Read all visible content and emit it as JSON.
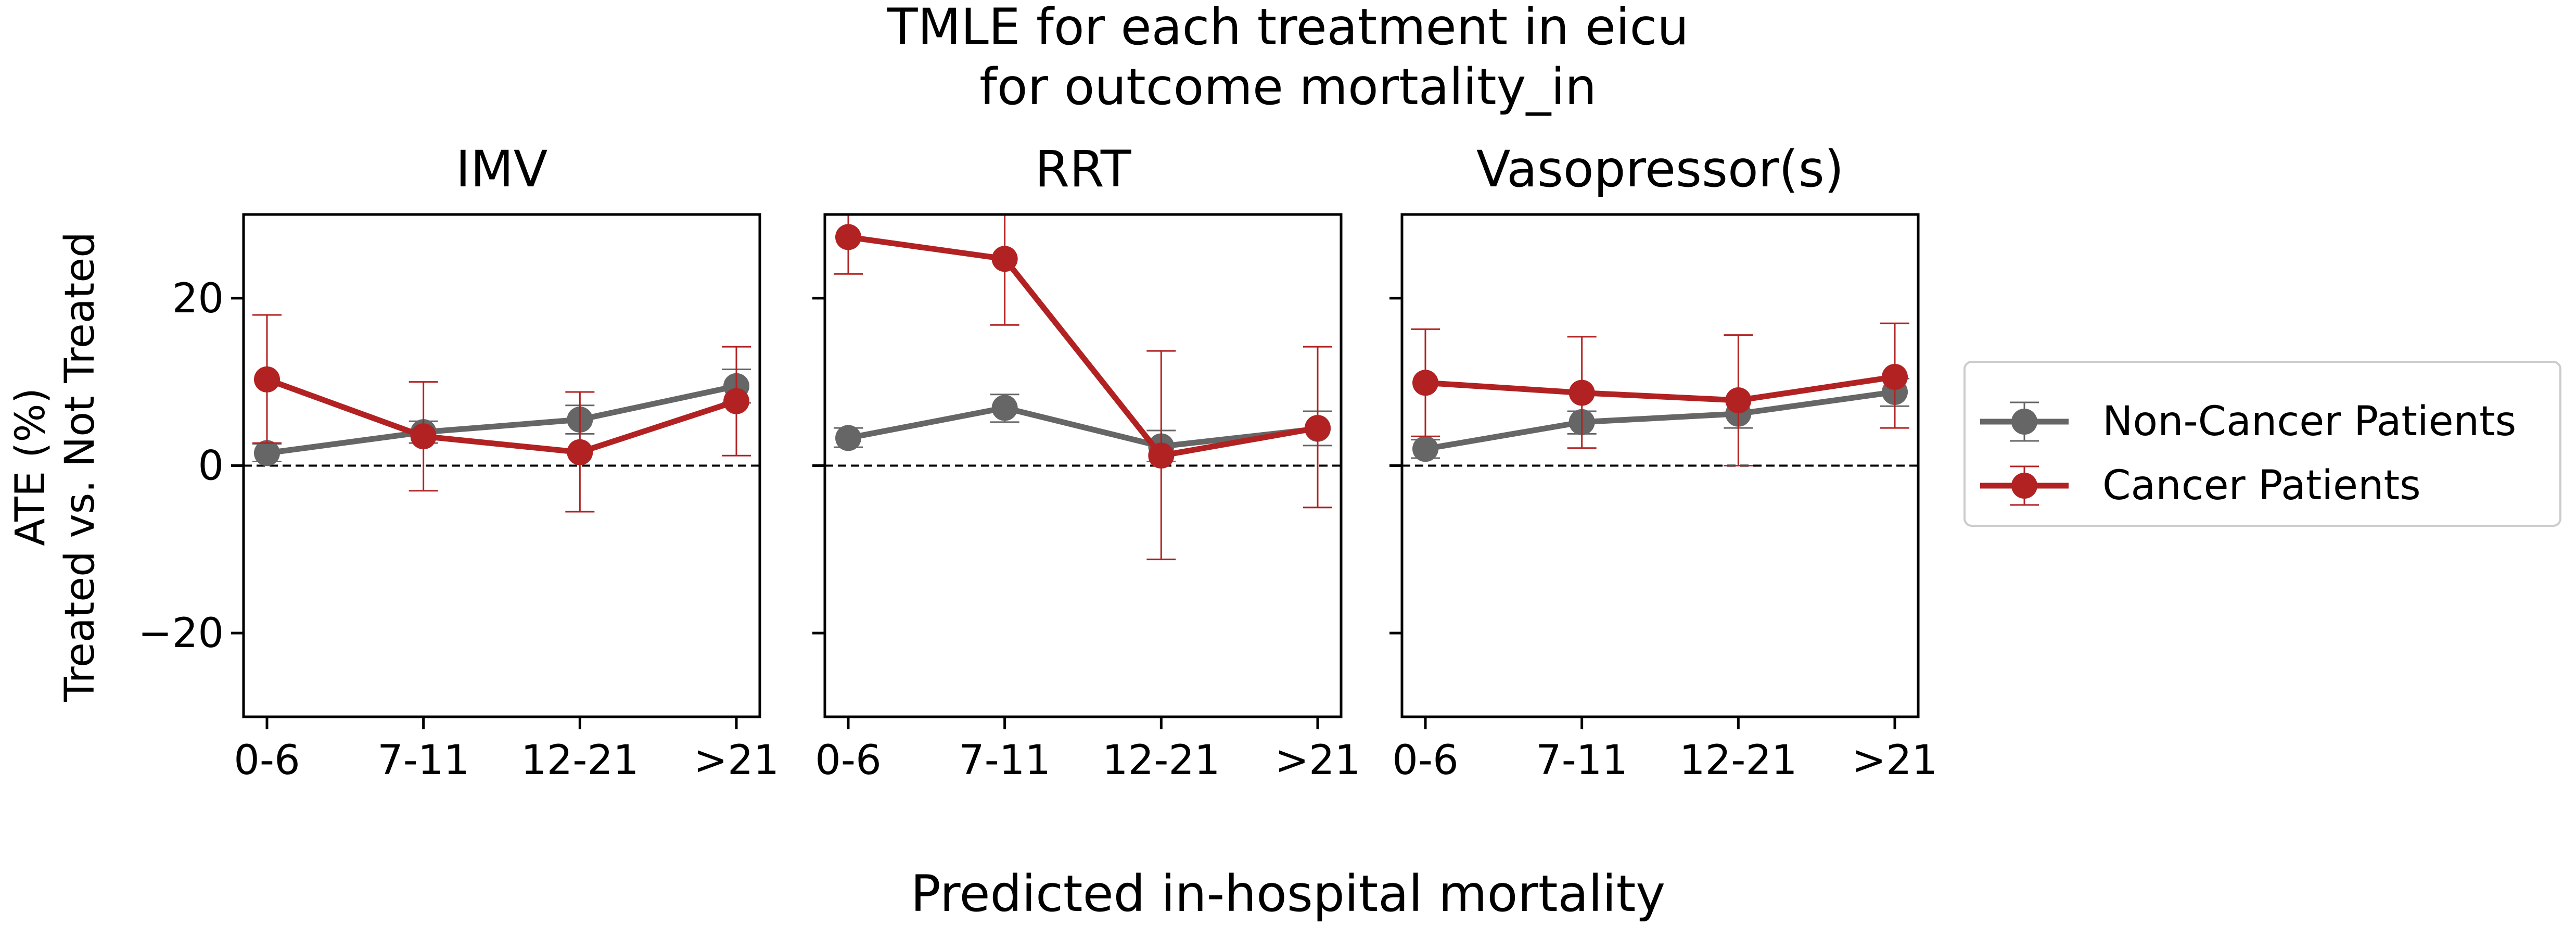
{
  "figure": {
    "title_line1": "TMLE for each treatment in eicu",
    "title_line2": "for outcome mortality_in",
    "xlabel": "Predicted in-hospital mortality",
    "ylabel_line1": "ATE (%)",
    "ylabel_line2": "Treated vs. Not Treated"
  },
  "legend": {
    "position": "right",
    "entries": [
      {
        "label": "Non-Cancer Patients",
        "color": "#666666"
      },
      {
        "label": "Cancer Patients",
        "color": "#b22222"
      }
    ]
  },
  "chart_data": [
    {
      "type": "line",
      "title": "IMV",
      "categories": [
        "0-6",
        "7-11",
        "12-21",
        ">21"
      ],
      "ylim": [
        -30,
        30
      ],
      "yticks": [
        -20,
        0,
        20
      ],
      "ytick_labels": [
        "−20",
        "0",
        "20"
      ],
      "reference_line": 0,
      "grid": false,
      "series": [
        {
          "name": "Non-Cancer Patients",
          "color": "#666666",
          "values": [
            1.5,
            4.0,
            5.5,
            9.5
          ],
          "err_low": [
            0.5,
            2.7,
            3.8,
            7.5
          ],
          "err_high": [
            2.6,
            5.3,
            7.2,
            11.5
          ]
        },
        {
          "name": "Cancer Patients",
          "color": "#b22222",
          "values": [
            10.3,
            3.5,
            1.6,
            7.7
          ],
          "err_low": [
            2.7,
            -3.0,
            -5.5,
            1.2
          ],
          "err_high": [
            18.0,
            10.0,
            8.8,
            14.2
          ]
        }
      ]
    },
    {
      "type": "line",
      "title": "RRT",
      "categories": [
        "0-6",
        "7-11",
        "12-21",
        ">21"
      ],
      "ylim": [
        -30,
        30
      ],
      "yticks": [
        -20,
        0,
        20
      ],
      "ytick_labels": [
        "",
        "",
        ""
      ],
      "reference_line": 0,
      "grid": false,
      "series": [
        {
          "name": "Non-Cancer Patients",
          "color": "#666666",
          "values": [
            3.3,
            6.9,
            2.3,
            4.4
          ],
          "err_low": [
            2.2,
            5.2,
            0.5,
            2.4
          ],
          "err_high": [
            4.5,
            8.5,
            4.2,
            6.5
          ]
        },
        {
          "name": "Cancer Patients",
          "color": "#b22222",
          "values": [
            27.3,
            24.7,
            1.2,
            4.5
          ],
          "err_low": [
            22.9,
            16.8,
            -11.2,
            -5.0
          ],
          "err_high": [
            30.0,
            30.0,
            13.7,
            14.2
          ]
        }
      ]
    },
    {
      "type": "line",
      "title": "Vasopressor(s)",
      "categories": [
        "0-6",
        "7-11",
        "12-21",
        ">21"
      ],
      "ylim": [
        -30,
        30
      ],
      "yticks": [
        -20,
        0,
        20
      ],
      "ytick_labels": [
        "",
        "",
        ""
      ],
      "reference_line": 0,
      "grid": false,
      "series": [
        {
          "name": "Non-Cancer Patients",
          "color": "#666666",
          "values": [
            2.0,
            5.2,
            6.2,
            8.8
          ],
          "err_low": [
            0.9,
            3.8,
            4.5,
            7.1
          ],
          "err_high": [
            3.1,
            6.5,
            7.8,
            10.4
          ]
        },
        {
          "name": "Cancer Patients",
          "color": "#b22222",
          "values": [
            9.9,
            8.7,
            7.8,
            10.6
          ],
          "err_low": [
            3.5,
            2.1,
            0.0,
            4.5
          ],
          "err_high": [
            16.3,
            15.4,
            15.6,
            17.0
          ]
        }
      ]
    }
  ]
}
